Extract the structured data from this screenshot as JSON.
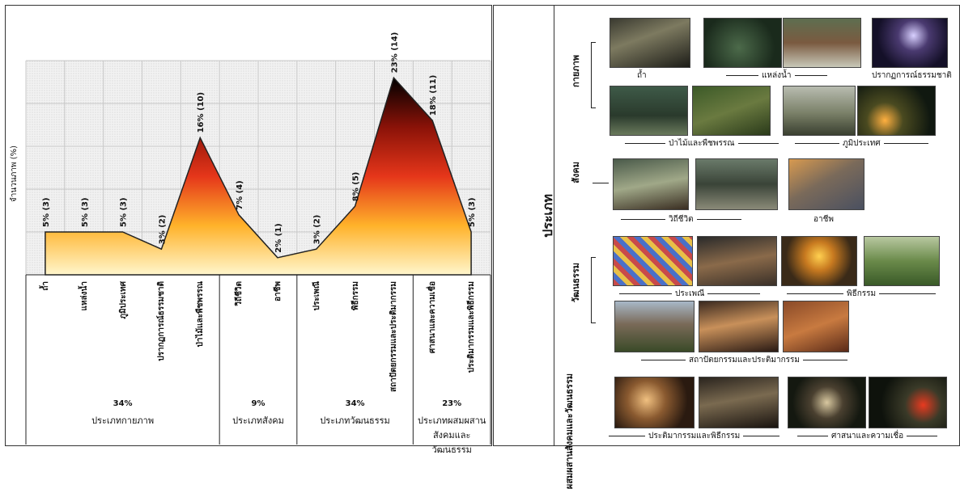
{
  "chart_data": {
    "type": "area",
    "ylabel": "จำนวนภาพ (%)",
    "categories": [
      "ถ้ำ",
      "แหล่งน้ำ",
      "ภูมิประเทศ",
      "ปรากฏการณ์ธรรมชาติ",
      "ป่าไม้และพืชพรรณ",
      "วิถีชีวิต",
      "อาชีพ",
      "ประเพณี",
      "พิธีกรรม",
      "สถาปัตยกรรมและประติมากรรม",
      "ศาสนาและความเชื่อ",
      "ประติมากรรมและพิธีกรรม"
    ],
    "values": [
      5,
      5,
      5,
      3,
      16,
      7,
      2,
      3,
      8,
      23,
      18,
      5
    ],
    "counts": [
      3,
      3,
      3,
      2,
      10,
      4,
      1,
      2,
      5,
      14,
      11,
      3
    ],
    "point_labels": [
      "5% (3)",
      "5% (3)",
      "5% (3)",
      "3% (2)",
      "16% (10)",
      "7% (4)",
      "2% (1)",
      "3% (2)",
      "8% (5)",
      "23% (14)",
      "18% (11)",
      "5% (3)"
    ],
    "groups": [
      {
        "pct": "34%",
        "name": "ประเภทกายภาพ",
        "span": 5
      },
      {
        "pct": "9%",
        "name": "ประเภทสังคม",
        "span": 2
      },
      {
        "pct": "34%",
        "name": "ประเภทวัฒนธรรม",
        "span": 3
      },
      {
        "pct": "23%",
        "name": "ประเภทผสมผสานสังคมและวัฒนธรรม",
        "span": 2
      }
    ],
    "ylim": [
      0,
      25
    ],
    "grid": true
  },
  "panel": {
    "title": "ประเภท",
    "sections": [
      {
        "label": "กายภาพ",
        "captions": [
          "ถ้ำ",
          "แหล่งน้ำ",
          "ปรากฏการณ์ธรรมชาติ",
          "ป่าไม้และพืชพรรณ",
          "ภูมิประเทศ"
        ]
      },
      {
        "label": "สังคม",
        "captions": [
          "วิถีชีวิต",
          "อาชีพ"
        ]
      },
      {
        "label": "วัฒนธรรม",
        "captions": [
          "ประเพณี",
          "พิธีกรรม",
          "สถาปัตยกรรมและประติมากรรม"
        ]
      },
      {
        "label": "ผสมผสานสังคมและวัฒนธรรม",
        "captions": [
          "ประติมากรรมและพิธีกรรม",
          "ศาสนาและความเชื่อ"
        ]
      }
    ]
  },
  "colors": {
    "grid": "#c8c8c8",
    "area_top": "#000000",
    "area_mid": "#d42a10",
    "area_low": "#ffcc33",
    "area_base": "#fff3c4"
  }
}
